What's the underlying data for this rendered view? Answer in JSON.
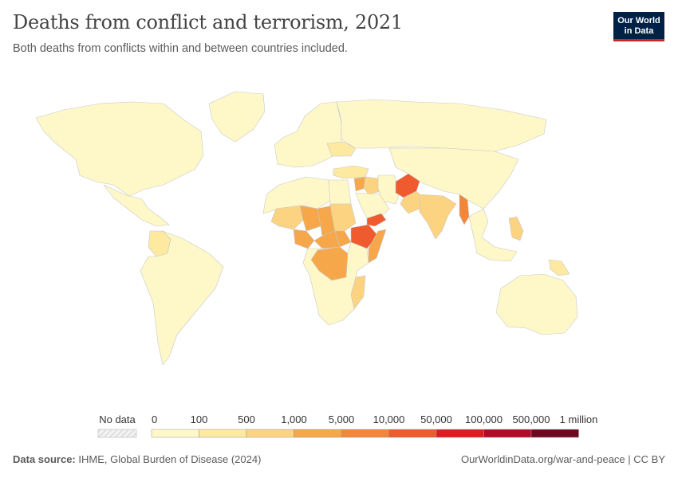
{
  "title": "Deaths from conflict and terrorism, 2021",
  "subtitle": "Both deaths from conflicts within and between countries included.",
  "logo": {
    "line1": "Our World",
    "line2": "in Data"
  },
  "legend": {
    "no_data_label": "No data",
    "bin_labels": [
      "0",
      "100",
      "500",
      "1,000",
      "5,000",
      "10,000",
      "50,000",
      "100,000",
      "500,000",
      "1 million"
    ],
    "bin_colors": [
      "#fef8c8",
      "#fde9a0",
      "#fbd381",
      "#f6a74a",
      "#f2873c",
      "#ef5a2e",
      "#dc1d1f",
      "#b10b28",
      "#6e0720"
    ]
  },
  "regions": [
    {
      "name": "north-america",
      "level": 0
    },
    {
      "name": "greenland",
      "level": 0
    },
    {
      "name": "mexico",
      "level": 0
    },
    {
      "name": "colombia",
      "level": 1
    },
    {
      "name": "south-america",
      "level": 0
    },
    {
      "name": "europe",
      "level": 0
    },
    {
      "name": "ukraine",
      "level": 1
    },
    {
      "name": "russia",
      "level": 0
    },
    {
      "name": "turkey",
      "level": 1
    },
    {
      "name": "syria",
      "level": 3
    },
    {
      "name": "iraq",
      "level": 2
    },
    {
      "name": "iran",
      "level": 0
    },
    {
      "name": "saudi-arabia",
      "level": 0
    },
    {
      "name": "yemen",
      "level": 5
    },
    {
      "name": "afghanistan",
      "level": 5
    },
    {
      "name": "pakistan",
      "level": 2
    },
    {
      "name": "india",
      "level": 2
    },
    {
      "name": "myanmar",
      "level": 4
    },
    {
      "name": "china",
      "level": 0
    },
    {
      "name": "southeast-asia",
      "level": 0
    },
    {
      "name": "philippines",
      "level": 2
    },
    {
      "name": "north-africa",
      "level": 0
    },
    {
      "name": "egypt",
      "level": 0
    },
    {
      "name": "mali",
      "level": 2
    },
    {
      "name": "niger",
      "level": 3
    },
    {
      "name": "nigeria",
      "level": 3
    },
    {
      "name": "chad",
      "level": 3
    },
    {
      "name": "sudan",
      "level": 2
    },
    {
      "name": "south-sudan",
      "level": 3
    },
    {
      "name": "central-african-republic",
      "level": 3
    },
    {
      "name": "ethiopia",
      "level": 5
    },
    {
      "name": "somalia",
      "level": 3
    },
    {
      "name": "dr-congo",
      "level": 3
    },
    {
      "name": "mozambique",
      "level": 2
    },
    {
      "name": "southern-africa",
      "level": 0
    },
    {
      "name": "australia",
      "level": 0
    },
    {
      "name": "papua-new-guinea",
      "level": 1
    }
  ],
  "footer": {
    "source_label": "Data source:",
    "source_text": "IHME, Global Burden of Disease (2024)",
    "url": "OurWorldinData.org/war-and-peace | CC BY"
  }
}
